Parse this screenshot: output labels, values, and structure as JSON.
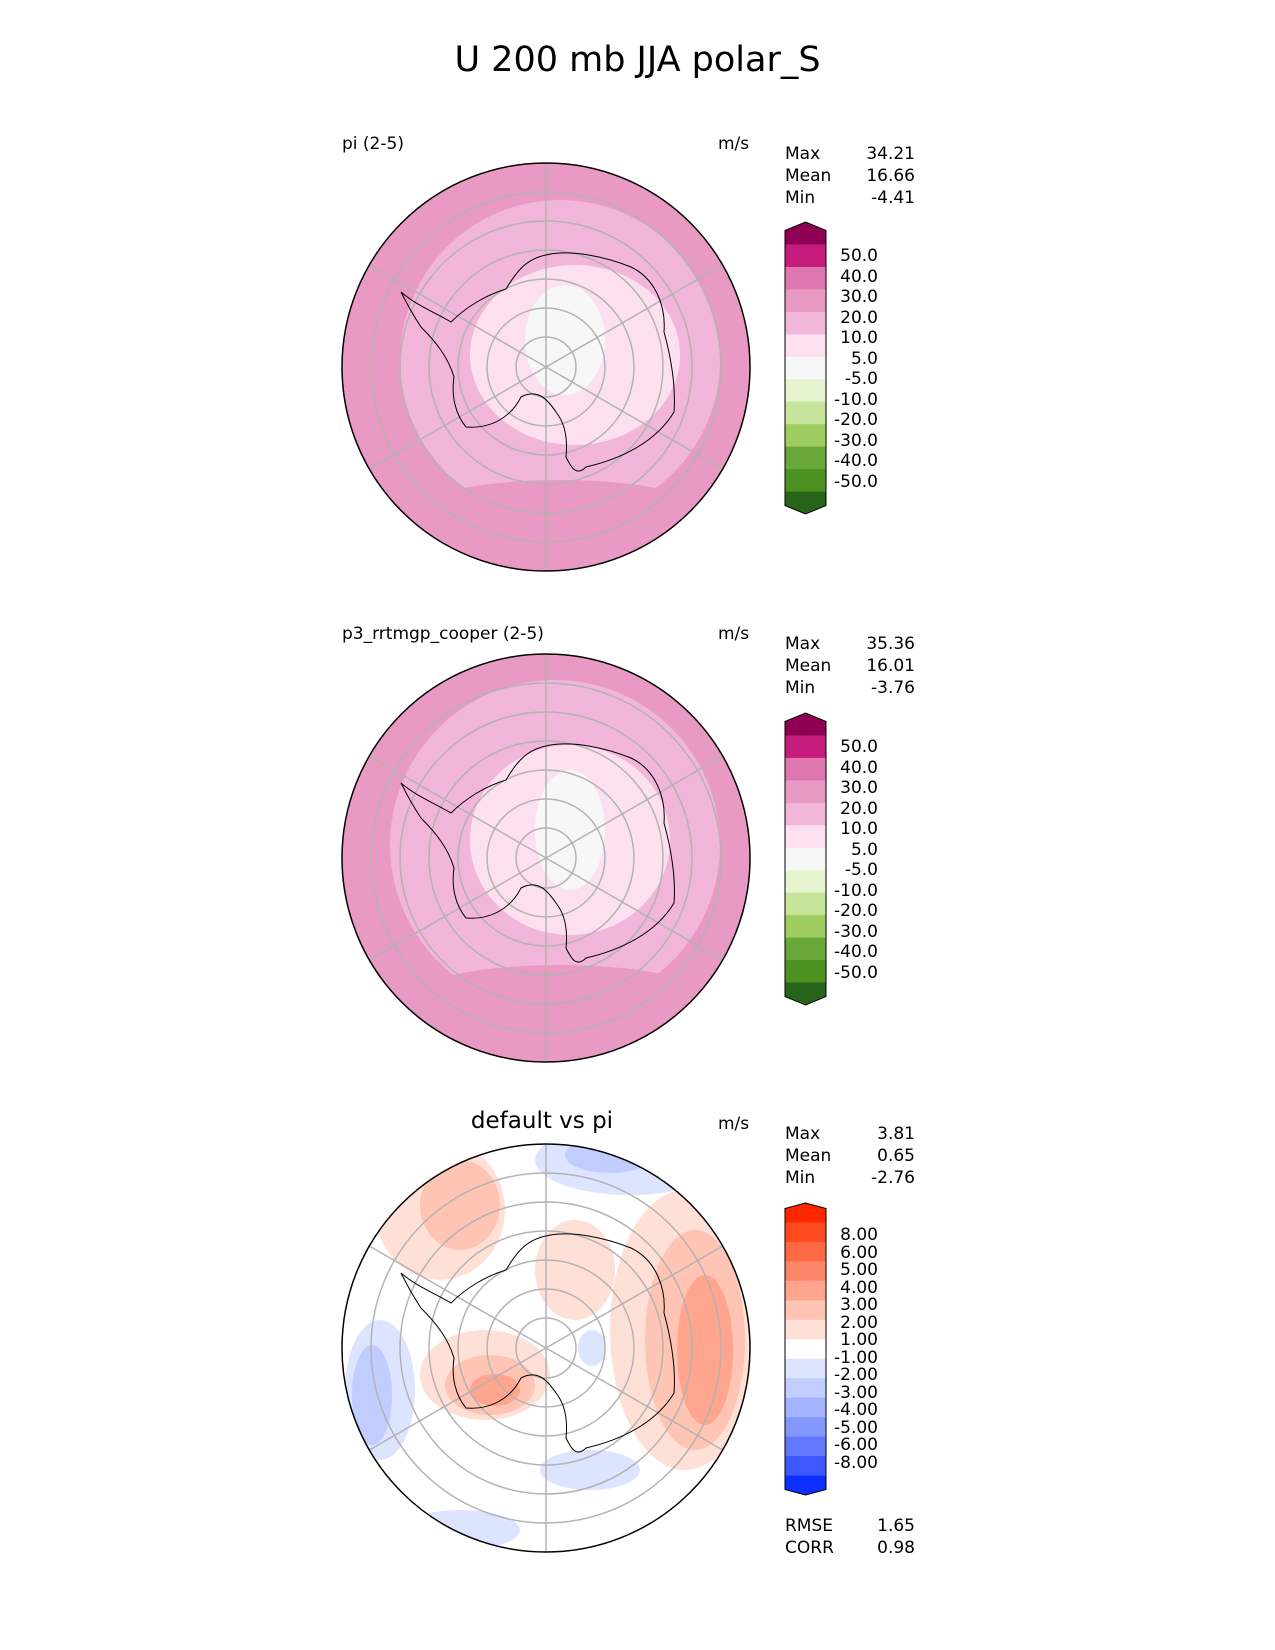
{
  "title": "U 200 mb JJA polar_S",
  "panels": [
    {
      "label": "pi (2-5)",
      "center_title": "",
      "units": "m/s",
      "stats": [
        {
          "name": "Max",
          "value": "34.21"
        },
        {
          "name": "Mean",
          "value": "16.66"
        },
        {
          "name": "Min",
          "value": "-4.41"
        }
      ],
      "colorbar": {
        "ticks": [
          "50.0",
          "40.0",
          "30.0",
          "20.0",
          "10.0",
          "5.0",
          "-5.0",
          "-10.0",
          "-20.0",
          "-30.0",
          "-40.0",
          "-50.0"
        ],
        "colors": [
          "#8e0152",
          "#c51b7d",
          "#de77ae",
          "#e899c4",
          "#f1b6da",
          "#fde0ef",
          "#f7f7f7",
          "#e6f5d0",
          "#c7e59a",
          "#9dcd5e",
          "#6aa939",
          "#4d9221",
          "#276419"
        ]
      },
      "footer": []
    },
    {
      "label": "p3_rrtmgp_cooper (2-5)",
      "center_title": "",
      "units": "m/s",
      "stats": [
        {
          "name": "Max",
          "value": "35.36"
        },
        {
          "name": "Mean",
          "value": "16.01"
        },
        {
          "name": "Min",
          "value": "-3.76"
        }
      ],
      "colorbar": {
        "ticks": [
          "50.0",
          "40.0",
          "30.0",
          "20.0",
          "10.0",
          "5.0",
          "-5.0",
          "-10.0",
          "-20.0",
          "-30.0",
          "-40.0",
          "-50.0"
        ],
        "colors": [
          "#8e0152",
          "#c51b7d",
          "#de77ae",
          "#e899c4",
          "#f1b6da",
          "#fde0ef",
          "#f7f7f7",
          "#e6f5d0",
          "#c7e59a",
          "#9dcd5e",
          "#6aa939",
          "#4d9221",
          "#276419"
        ]
      },
      "footer": []
    },
    {
      "label": "",
      "center_title": "default vs pi",
      "units": "m/s",
      "stats": [
        {
          "name": "Max",
          "value": "3.81"
        },
        {
          "name": "Mean",
          "value": "0.65"
        },
        {
          "name": "Min",
          "value": "-2.76"
        }
      ],
      "colorbar": {
        "ticks": [
          "8.00",
          "6.00",
          "5.00",
          "4.00",
          "3.00",
          "2.00",
          "1.00",
          "-1.00",
          "-2.00",
          "-3.00",
          "-4.00",
          "-5.00",
          "-6.00",
          "-8.00"
        ],
        "colors": [
          "#ff2600",
          "#ff4a1f",
          "#ff6a45",
          "#ff8769",
          "#ffa58d",
          "#ffc4b3",
          "#ffe0d6",
          "#ffffff",
          "#dde4ff",
          "#c1ccff",
          "#a3b3ff",
          "#8497ff",
          "#6279ff",
          "#3d58ff",
          "#0b30ff"
        ]
      },
      "footer": [
        {
          "name": "RMSE",
          "value": "1.65"
        },
        {
          "name": "CORR",
          "value": "0.98"
        }
      ]
    }
  ]
}
